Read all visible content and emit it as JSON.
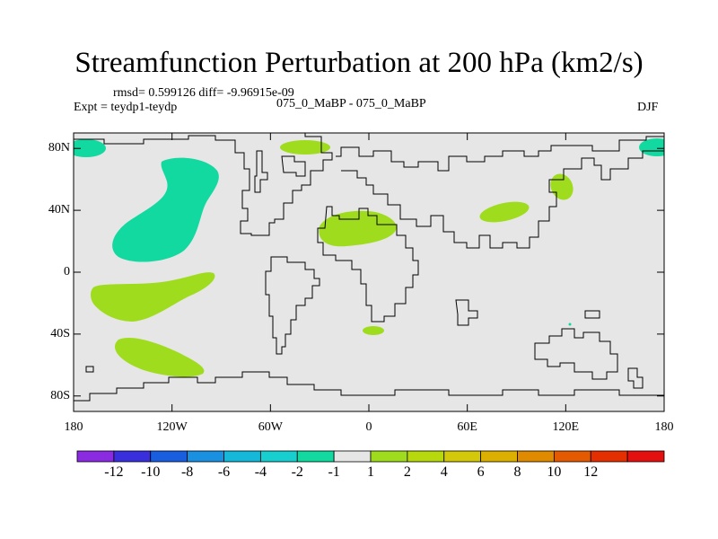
{
  "chart_data": {
    "type": "heatmap",
    "title": "Streamfunction Perturbation at 200 hPa (km2/s)",
    "stats_line": "rmsd= 0.599126 diff= -9.96915e-09",
    "left_label": "Expt = teydp1-teydp",
    "center_label": "075_0_MaBP - 075_0_MaBP",
    "right_label": "DJF",
    "x_ticks": [
      {
        "lon": -180,
        "label": "180"
      },
      {
        "lon": -120,
        "label": "120W"
      },
      {
        "lon": -60,
        "label": "60W"
      },
      {
        "lon": 0,
        "label": "0"
      },
      {
        "lon": 60,
        "label": "60E"
      },
      {
        "lon": 120,
        "label": "120E"
      },
      {
        "lon": 180,
        "label": "180"
      }
    ],
    "y_ticks": [
      {
        "lat": 80,
        "label": "80N"
      },
      {
        "lat": 40,
        "label": "40N"
      },
      {
        "lat": 0,
        "label": "0"
      },
      {
        "lat": -40,
        "label": "40S"
      },
      {
        "lat": -80,
        "label": "80S"
      }
    ],
    "xlim": [
      -180,
      180
    ],
    "ylim": [
      -90,
      90
    ],
    "colorbar": {
      "colors": [
        "#8a2be2",
        "#3a2fdd",
        "#1a5ee0",
        "#1a90e0",
        "#16b8da",
        "#18cfcf",
        "#12d9a0",
        "#e6e6e6",
        "#a0dc1e",
        "#b8d80e",
        "#d4c80a",
        "#dcb000",
        "#e08a00",
        "#e45a00",
        "#e43000",
        "#e41010"
      ],
      "labels": [
        "-12",
        "-10",
        "-8",
        "-6",
        "-4",
        "-2",
        "-1",
        "1",
        "2",
        "4",
        "6",
        "8",
        "10",
        "12"
      ]
    },
    "anomalies": [
      {
        "label": "-1",
        "color": "#12d9a0",
        "region": "Arctic near 180W, ~70N"
      },
      {
        "label": "-1",
        "color": "#12d9a0",
        "region": "Arctic near 180E, ~70N"
      },
      {
        "label": "-1",
        "color": "#12d9a0",
        "region": "North Pacific, 160W-110W, 10N-65N"
      },
      {
        "label": "1",
        "color": "#a0dc1e",
        "region": "South Pacific, 170W-100W, 5S-40S"
      },
      {
        "label": "1",
        "color": "#a0dc1e",
        "region": "South Pacific, 160W-110W, 45S-70S"
      },
      {
        "label": "1",
        "color": "#a0dc1e",
        "region": "North Atlantic, 50W-20W, ~75N"
      },
      {
        "label": "1",
        "color": "#a0dc1e",
        "region": "Mediterranean / N Africa, 30W-15E, 20N-35N"
      },
      {
        "label": "1",
        "color": "#a0dc1e",
        "region": "Central Asia, 70E-100E, 30N-40N"
      },
      {
        "label": "1",
        "color": "#a0dc1e",
        "region": "East Asia, 110E-130E, 35N-55N"
      },
      {
        "label": "1",
        "color": "#a0dc1e",
        "region": "South Atlantic, 5W-10E, ~42S"
      }
    ]
  }
}
